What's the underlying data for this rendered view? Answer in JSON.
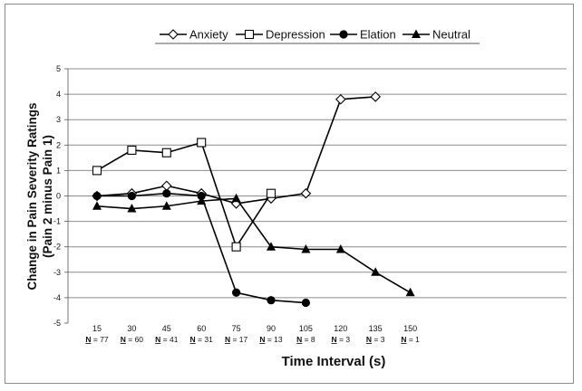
{
  "chart_data": {
    "type": "line",
    "xlabel": "Time Interval (s)",
    "ylabel_line1": "Change in Pain Severity Ratings",
    "ylabel_line2": "(Pain 2 minus Pain 1)",
    "ylim": [
      -5,
      5
    ],
    "yticks": [
      "5",
      "4",
      "3",
      "2",
      "1",
      "0",
      "-1",
      "-2",
      "-3",
      "-4",
      "-5"
    ],
    "grid": true,
    "legend_position": "top-center",
    "categories": [
      "15",
      "30",
      "45",
      "60",
      "75",
      "90",
      "105",
      "120",
      "135",
      "150"
    ],
    "n_labels": [
      {
        "N": "N",
        "rest": " = 77"
      },
      {
        "N": "N",
        "rest": " = 60"
      },
      {
        "N": "N",
        "rest": " = 41"
      },
      {
        "N": "N",
        "rest": " = 31"
      },
      {
        "N": "N",
        "rest": " = 17"
      },
      {
        "N": "N",
        "rest": " = 13"
      },
      {
        "N": "N",
        "rest": " = 8"
      },
      {
        "N": "N",
        "rest": " = 3"
      },
      {
        "N": "N",
        "rest": " = 3"
      },
      {
        "N": "N",
        "rest": " = 1"
      }
    ],
    "series": [
      {
        "name": "Anxiety",
        "marker": "diamond-open",
        "color": "#000000",
        "values": [
          0,
          0.1,
          0.4,
          0.1,
          -0.3,
          -0.1,
          0.1,
          3.8,
          3.9,
          null
        ]
      },
      {
        "name": "Depression",
        "marker": "square-open",
        "color": "#000000",
        "values": [
          1.0,
          1.8,
          1.7,
          2.1,
          -2.0,
          0.1,
          null,
          null,
          null,
          null
        ]
      },
      {
        "name": "Elation",
        "marker": "circle-filled",
        "color": "#000000",
        "values": [
          0,
          0,
          0.1,
          0,
          -3.8,
          -4.1,
          -4.2,
          null,
          null,
          null
        ]
      },
      {
        "name": "Neutral",
        "marker": "triangle-filled",
        "color": "#000000",
        "values": [
          -0.4,
          -0.5,
          -0.4,
          -0.2,
          -0.1,
          -2.0,
          -2.1,
          -2.1,
          -3.0,
          -3.8
        ]
      }
    ]
  }
}
